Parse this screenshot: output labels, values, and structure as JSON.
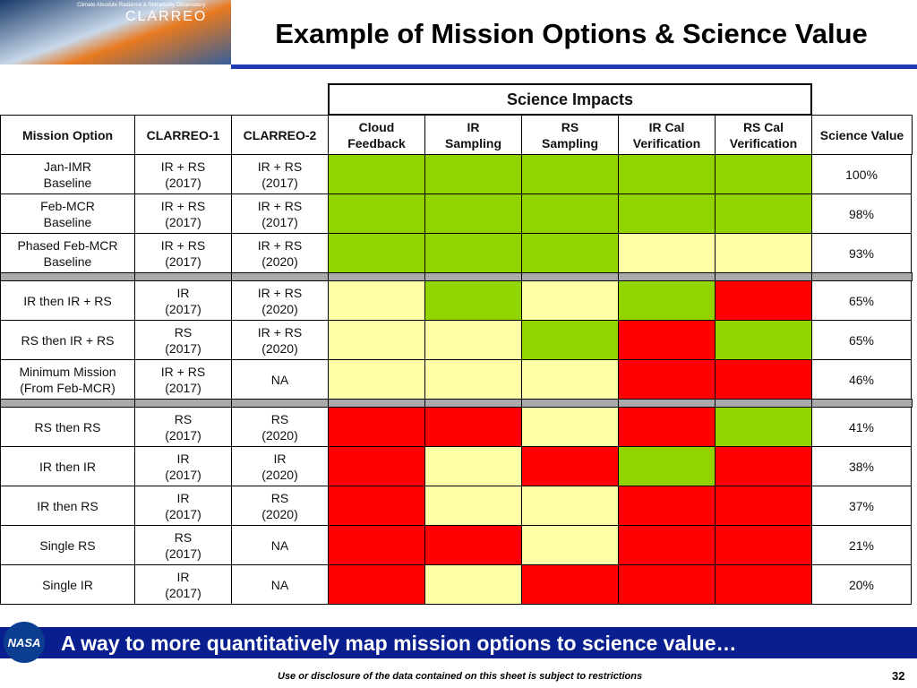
{
  "header": {
    "logo_caption": "Climate Absolute Radiance & Refractivity Observatory",
    "logo_name": "CLARREO",
    "title": "Example of Mission Options & Science Value"
  },
  "table": {
    "group_header": "Science Impacts",
    "columns": [
      "Mission Option",
      "CLARREO-1",
      "CLARREO-2",
      "Cloud\nFeedback",
      "IR\nSampling",
      "RS\nSampling",
      "IR Cal\nVerification",
      "RS Cal\nVerification",
      "Science Value"
    ],
    "groups": [
      [
        {
          "option": "Jan-IMR\nBaseline",
          "clarreo1": "IR + RS\n(2017)",
          "clarreo2": "IR + RS\n(2017)",
          "impacts": [
            "#92d400",
            "#92d400",
            "#92d400",
            "#92d400",
            "#92d400"
          ],
          "science_value": "100%"
        },
        {
          "option": "Feb-MCR\nBaseline",
          "clarreo1": "IR + RS\n(2017)",
          "clarreo2": "IR + RS\n(2017)",
          "impacts": [
            "#92d400",
            "#92d400",
            "#92d400",
            "#92d400",
            "#92d400"
          ],
          "science_value": "98%"
        },
        {
          "option": "Phased Feb-MCR\nBaseline",
          "clarreo1": "IR + RS\n(2017)",
          "clarreo2": "IR + RS\n(2020)",
          "impacts": [
            "#92d400",
            "#92d400",
            "#92d400",
            "#ffffa8",
            "#ffffa8"
          ],
          "science_value": "93%"
        }
      ],
      [
        {
          "option": "IR then IR + RS",
          "clarreo1": "IR\n(2017)",
          "clarreo2": "IR + RS\n(2020)",
          "impacts": [
            "#ffffa8",
            "#92d400",
            "#ffffa8",
            "#92d400",
            "#ff0000"
          ],
          "science_value": "65%"
        },
        {
          "option": "RS then IR + RS",
          "clarreo1": "RS\n(2017)",
          "clarreo2": "IR + RS\n(2020)",
          "impacts": [
            "#ffffa8",
            "#ffffa8",
            "#92d400",
            "#ff0000",
            "#92d400"
          ],
          "science_value": "65%"
        },
        {
          "option": "Minimum Mission\n(From Feb-MCR)",
          "clarreo1": "IR + RS\n(2017)",
          "clarreo2": "NA",
          "impacts": [
            "#ffffa8",
            "#ffffa8",
            "#ffffa8",
            "#ff0000",
            "#ff0000"
          ],
          "science_value": "46%"
        }
      ],
      [
        {
          "option": "RS then RS",
          "clarreo1": "RS\n(2017)",
          "clarreo2": "RS\n(2020)",
          "impacts": [
            "#ff0000",
            "#ff0000",
            "#ffffa8",
            "#ff0000",
            "#92d400"
          ],
          "science_value": "41%"
        },
        {
          "option": "IR then IR",
          "clarreo1": "IR\n(2017)",
          "clarreo2": "IR\n(2020)",
          "impacts": [
            "#ff0000",
            "#ffffa8",
            "#ff0000",
            "#92d400",
            "#ff0000"
          ],
          "science_value": "38%"
        },
        {
          "option": "IR then RS",
          "clarreo1": "IR\n(2017)",
          "clarreo2": "RS\n(2020)",
          "impacts": [
            "#ff0000",
            "#ffffa8",
            "#ffffa8",
            "#ff0000",
            "#ff0000"
          ],
          "science_value": "37%"
        },
        {
          "option": "Single RS",
          "clarreo1": "RS\n(2017)",
          "clarreo2": "NA",
          "impacts": [
            "#ff0000",
            "#ff0000",
            "#ffffa8",
            "#ff0000",
            "#ff0000"
          ],
          "science_value": "21%"
        },
        {
          "option": "Single IR",
          "clarreo1": "IR\n(2017)",
          "clarreo2": "NA",
          "impacts": [
            "#ff0000",
            "#ffffa8",
            "#ff0000",
            "#ff0000",
            "#ff0000"
          ],
          "science_value": "20%"
        }
      ]
    ]
  },
  "footer": {
    "logo": "NASA",
    "banner": "A way to more quantitatively map mission options to science value…",
    "notice": "Use or disclosure of the data contained on this sheet is subject to restrictions",
    "page_number": "32"
  }
}
